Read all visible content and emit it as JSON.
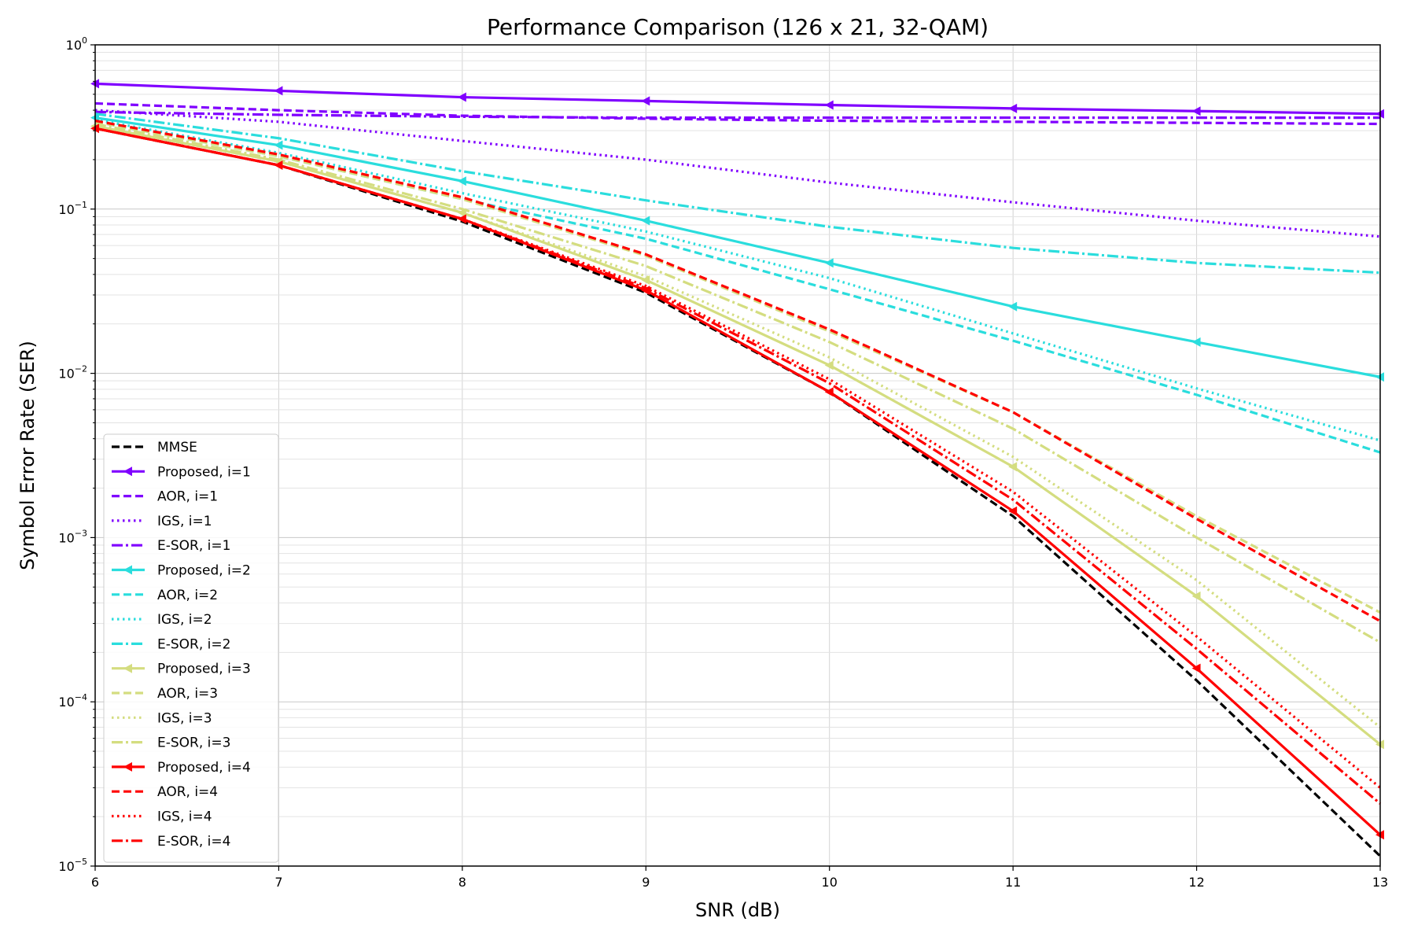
{
  "chart_data": {
    "type": "line",
    "title": "Performance Comparison (126 x 21, 32-QAM)",
    "xlabel": "SNR (dB)",
    "ylabel": "Symbol Error Rate (SER)",
    "xlim": [
      6,
      13
    ],
    "ylim": [
      1e-05,
      1
    ],
    "yscale": "log",
    "grid": true,
    "legend_position": "lower-left",
    "x": [
      6,
      7,
      8,
      9,
      10,
      11,
      12,
      13
    ],
    "xticks": [
      "6",
      "7",
      "8",
      "9",
      "10",
      "11",
      "12",
      "13"
    ],
    "yticks": [
      {
        "value": 1,
        "base": "10",
        "exp": "0"
      },
      {
        "value": 0.1,
        "base": "10",
        "exp": "−1"
      },
      {
        "value": 0.01,
        "base": "10",
        "exp": "−2"
      },
      {
        "value": 0.001,
        "base": "10",
        "exp": "−3"
      },
      {
        "value": 0.0001,
        "base": "10",
        "exp": "−4"
      },
      {
        "value": 1e-05,
        "base": "10",
        "exp": "−5"
      }
    ],
    "series": [
      {
        "name": "MMSE",
        "color": "#000000",
        "style": "dashed",
        "marker": "none",
        "values": [
          0.31,
          0.185,
          0.084,
          0.031,
          0.0077,
          0.00135,
          0.000135,
          1.15e-05
        ]
      },
      {
        "name": "Proposed, i=1",
        "color": "#8000ff",
        "style": "solid",
        "marker": "triangle-left",
        "values": [
          0.58,
          0.525,
          0.48,
          0.455,
          0.43,
          0.41,
          0.395,
          0.38
        ]
      },
      {
        "name": "AOR, i=1",
        "color": "#8000ff",
        "style": "dashed",
        "marker": "none",
        "values": [
          0.44,
          0.4,
          0.37,
          0.355,
          0.345,
          0.34,
          0.335,
          0.33
        ]
      },
      {
        "name": "IGS, i=1",
        "color": "#8000ff",
        "style": "dotted",
        "marker": "none",
        "values": [
          0.4,
          0.34,
          0.26,
          0.2,
          0.145,
          0.11,
          0.085,
          0.068
        ]
      },
      {
        "name": "E-SOR, i=1",
        "color": "#8000ff",
        "style": "dashdot",
        "marker": "none",
        "values": [
          0.39,
          0.375,
          0.365,
          0.36,
          0.36,
          0.36,
          0.36,
          0.36
        ]
      },
      {
        "name": "Proposed, i=2",
        "color": "#2adddd",
        "style": "solid",
        "marker": "triangle-left",
        "values": [
          0.36,
          0.245,
          0.148,
          0.085,
          0.047,
          0.0255,
          0.0155,
          0.0095
        ]
      },
      {
        "name": "AOR, i=2",
        "color": "#2adddd",
        "style": "dashed",
        "marker": "none",
        "values": [
          0.34,
          0.21,
          0.115,
          0.066,
          0.0325,
          0.0158,
          0.0074,
          0.0033
        ]
      },
      {
        "name": "IGS, i=2",
        "color": "#2adddd",
        "style": "dotted",
        "marker": "none",
        "values": [
          0.35,
          0.22,
          0.125,
          0.073,
          0.038,
          0.0175,
          0.0081,
          0.0039
        ]
      },
      {
        "name": "E-SOR, i=2",
        "color": "#2adddd",
        "style": "dashdot",
        "marker": "none",
        "values": [
          0.38,
          0.27,
          0.17,
          0.113,
          0.078,
          0.058,
          0.047,
          0.041
        ]
      },
      {
        "name": "Proposed, i=3",
        "color": "#d4dd80",
        "style": "solid",
        "marker": "triangle-left",
        "values": [
          0.32,
          0.195,
          0.095,
          0.037,
          0.0112,
          0.0027,
          0.00044,
          5.5e-05
        ]
      },
      {
        "name": "AOR, i=3",
        "color": "#d4dd80",
        "style": "dashed",
        "marker": "none",
        "values": [
          0.34,
          0.21,
          0.115,
          0.052,
          0.018,
          0.0058,
          0.00135,
          0.00035
        ]
      },
      {
        "name": "IGS, i=3",
        "color": "#d4dd80",
        "style": "dotted",
        "marker": "none",
        "values": [
          0.32,
          0.195,
          0.095,
          0.039,
          0.0125,
          0.0031,
          0.00055,
          7e-05
        ]
      },
      {
        "name": "E-SOR, i=3",
        "color": "#d4dd80",
        "style": "dashdot",
        "marker": "none",
        "values": [
          0.33,
          0.2,
          0.1,
          0.045,
          0.0155,
          0.0046,
          0.001,
          0.00023
        ]
      },
      {
        "name": "Proposed, i=4",
        "color": "#ff0000",
        "style": "solid",
        "marker": "triangle-left",
        "values": [
          0.31,
          0.185,
          0.087,
          0.032,
          0.0077,
          0.00145,
          0.00016,
          1.55e-05
        ]
      },
      {
        "name": "AOR, i=4",
        "color": "#ff0000",
        "style": "dashed",
        "marker": "none",
        "values": [
          0.345,
          0.215,
          0.118,
          0.053,
          0.0185,
          0.0058,
          0.0013,
          0.00031
        ]
      },
      {
        "name": "IGS, i=4",
        "color": "#ff0000",
        "style": "dotted",
        "marker": "none",
        "values": [
          0.31,
          0.185,
          0.087,
          0.034,
          0.0092,
          0.0019,
          0.00025,
          3e-05
        ]
      },
      {
        "name": "E-SOR, i=4",
        "color": "#ff0000",
        "style": "dashdot",
        "marker": "none",
        "values": [
          0.31,
          0.185,
          0.087,
          0.033,
          0.0087,
          0.0017,
          0.00021,
          2.4e-05
        ]
      }
    ]
  }
}
